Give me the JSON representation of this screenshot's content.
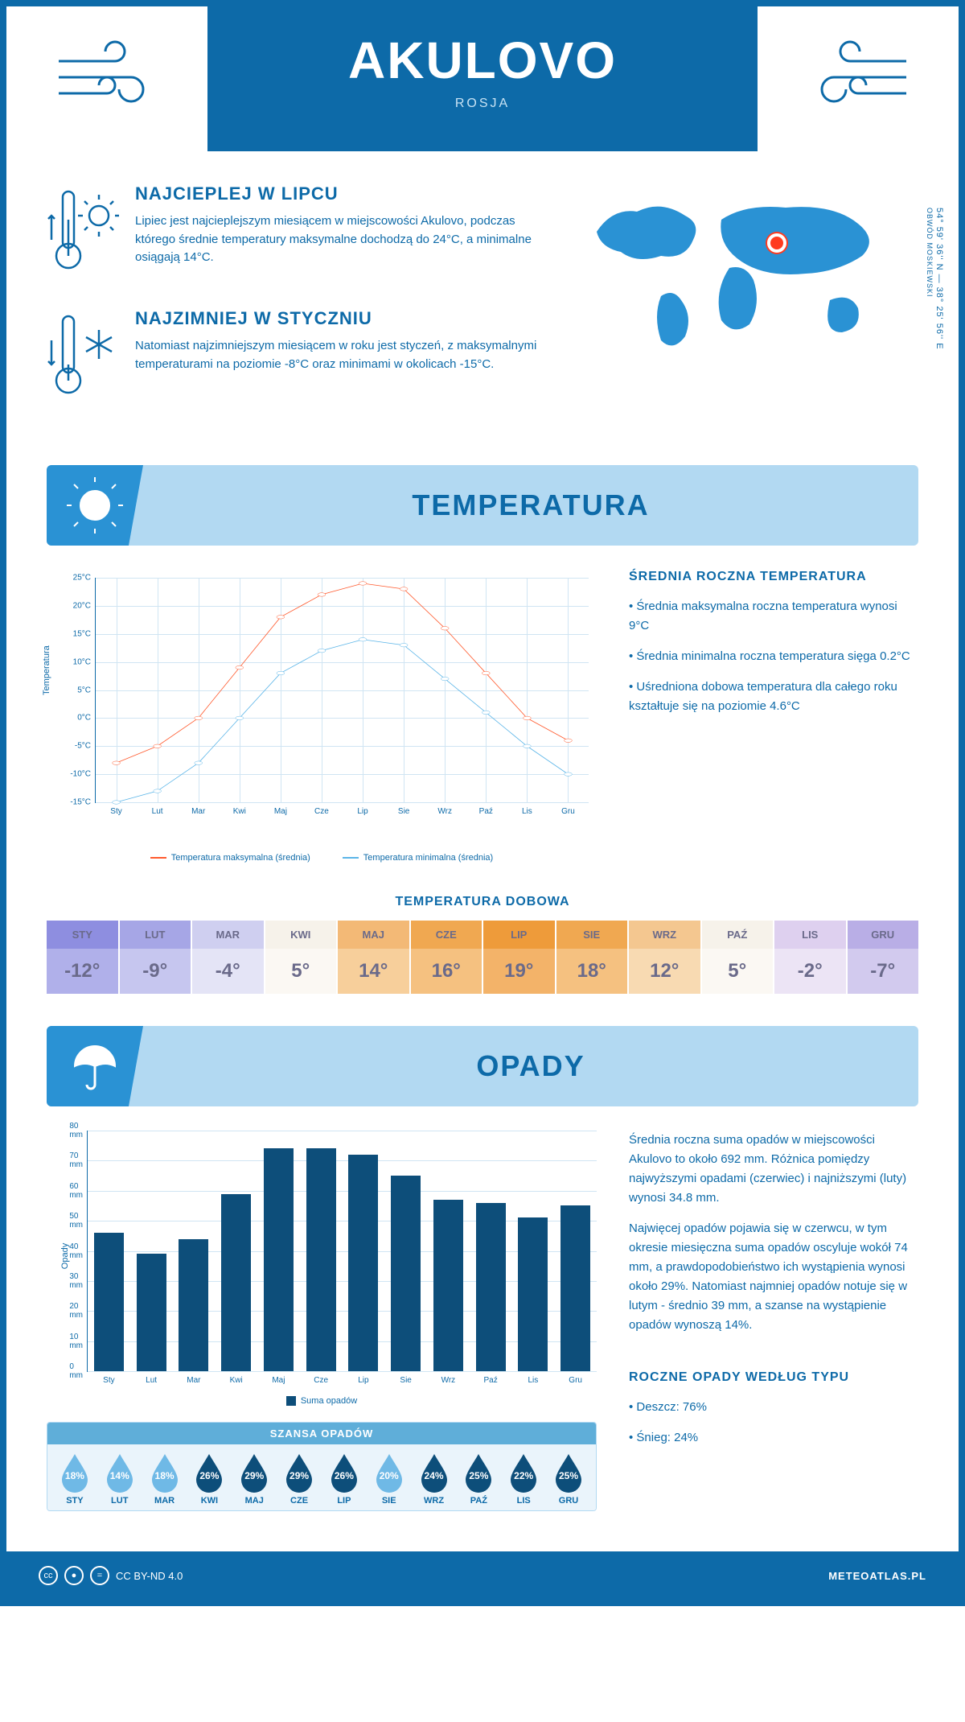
{
  "header": {
    "title": "AKULOVO",
    "subtitle": "ROSJA"
  },
  "coords": {
    "lat": "54° 59' 36'' N — 38° 25' 56'' E",
    "region": "OBWÓD MOSKIEWSKI"
  },
  "warmest": {
    "title": "NAJCIEPLEJ W LIPCU",
    "text": "Lipiec jest najcieplejszym miesiącem w miejscowości Akulovo, podczas którego średnie temperatury maksymalne dochodzą do 24°C, a minimalne osiągają 14°C."
  },
  "coldest": {
    "title": "NAJZIMNIEJ W STYCZNIU",
    "text": "Natomiast najzimniejszym miesiącem w roku jest styczeń, z maksymalnymi temperaturami na poziomie -8°C oraz minimami w okolicach -15°C."
  },
  "temp_banner": "TEMPERATURA",
  "temp_side": {
    "title": "ŚREDNIA ROCZNA TEMPERATURA",
    "b1": "• Średnia maksymalna roczna temperatura wynosi 9°C",
    "b2": "• Średnia minimalna roczna temperatura sięga 0.2°C",
    "b3": "• Uśredniona dobowa temperatura dla całego roku kształtuje się na poziomie 4.6°C"
  },
  "temp_chart": {
    "type": "line",
    "ylabel": "Temperatura",
    "ylim": [
      -15,
      25
    ],
    "ytick_step": 5,
    "ytick_suffix": "°C",
    "grid_color": "#d0e5f3",
    "months": [
      "Sty",
      "Lut",
      "Mar",
      "Kwi",
      "Maj",
      "Cze",
      "Lip",
      "Sie",
      "Wrz",
      "Paź",
      "Lis",
      "Gru"
    ],
    "series": [
      {
        "name": "Temperatura maksymalna (średnia)",
        "color": "#ff5a2e",
        "values": [
          -8,
          -5,
          0,
          9,
          18,
          22,
          24,
          23,
          16,
          8,
          0,
          -4
        ]
      },
      {
        "name": "Temperatura minimalna (średnia)",
        "color": "#5bb5e8",
        "values": [
          -15,
          -13,
          -8,
          0,
          8,
          12,
          14,
          13,
          7,
          1,
          -5,
          -10
        ]
      }
    ]
  },
  "daily_title": "TEMPERATURA DOBOWA",
  "daily": {
    "months": [
      "STY",
      "LUT",
      "MAR",
      "KWI",
      "MAJ",
      "CZE",
      "LIP",
      "SIE",
      "WRZ",
      "PAŹ",
      "LIS",
      "GRU"
    ],
    "values": [
      "-12°",
      "-9°",
      "-4°",
      "5°",
      "14°",
      "16°",
      "19°",
      "18°",
      "12°",
      "5°",
      "-2°",
      "-7°"
    ],
    "head_colors": [
      "#8e8ee0",
      "#a6a6e6",
      "#cfcff0",
      "#f6f2ea",
      "#f3b976",
      "#f0a851",
      "#ee9b3a",
      "#f0a851",
      "#f4c790",
      "#f6f2ea",
      "#ded0ef",
      "#b9aee6"
    ],
    "val_colors": [
      "#b0b0ea",
      "#c6c6ef",
      "#e4e4f6",
      "#fbf8f3",
      "#f7cf9b",
      "#f5c180",
      "#f3b369",
      "#f5c180",
      "#f8dab2",
      "#fbf8f3",
      "#ece4f5",
      "#d2caee"
    ],
    "text_color": "#6a6a8a"
  },
  "precip_banner": "OPADY",
  "precip_side": {
    "p1": "Średnia roczna suma opadów w miejscowości Akulovo to około 692 mm. Różnica pomiędzy najwyższymi opadami (czerwiec) i najniższymi (luty) wynosi 34.8 mm.",
    "p2": "Najwięcej opadów pojawia się w czerwcu, w tym okresie miesięczna suma opadów oscyluje wokół 74 mm, a prawdopodobieństwo ich wystąpienia wynosi około 29%. Natomiast najmniej opadów notuje się w lutym - średnio 39 mm, a szanse na wystąpienie opadów wynoszą 14%.",
    "type_title": "ROCZNE OPADY WEDŁUG TYPU",
    "rain": "• Deszcz: 76%",
    "snow": "• Śnieg: 24%"
  },
  "precip_chart": {
    "type": "bar",
    "ylabel": "Opady",
    "ylim": [
      0,
      80
    ],
    "ytick_step": 10,
    "ytick_suffix": " mm",
    "bar_color": "#0d4e7a",
    "grid_color": "#d0e5f3",
    "months": [
      "Sty",
      "Lut",
      "Mar",
      "Kwi",
      "Maj",
      "Cze",
      "Lip",
      "Sie",
      "Wrz",
      "Paź",
      "Lis",
      "Gru"
    ],
    "values": [
      46,
      39,
      44,
      59,
      74,
      74,
      72,
      65,
      57,
      56,
      51,
      55
    ],
    "legend": "Suma opadów"
  },
  "chance": {
    "title": "SZANSA OPADÓW",
    "months": [
      "STY",
      "LUT",
      "MAR",
      "KWI",
      "MAJ",
      "CZE",
      "LIP",
      "SIE",
      "WRZ",
      "PAŹ",
      "LIS",
      "GRU"
    ],
    "pct": [
      18,
      14,
      18,
      26,
      29,
      29,
      26,
      20,
      24,
      25,
      22,
      25
    ],
    "light_color": "#6fb9e6",
    "dark_color": "#0d4e7a",
    "threshold": 22
  },
  "footer": {
    "license": "CC BY-ND 4.0",
    "brand": "METEOATLAS.PL"
  }
}
